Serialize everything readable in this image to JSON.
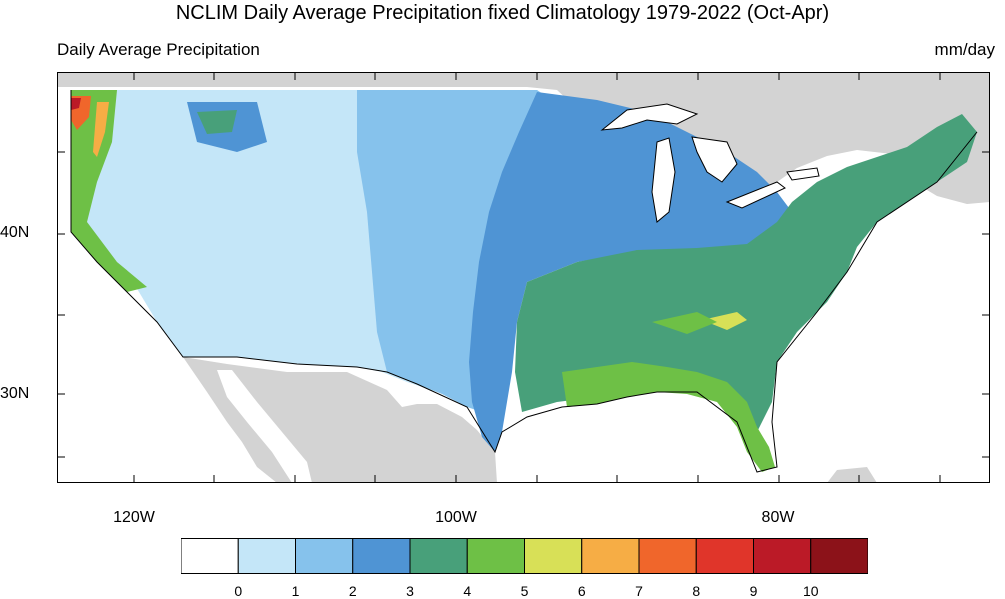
{
  "title": "NCLIM Daily Average Precipitation fixed Climatology 1979-2022 (Oct-Apr)",
  "subtitle_left": "Daily Average Precipitation",
  "subtitle_right": "mm/day",
  "lat_labels": [
    "40N",
    "30N"
  ],
  "lon_labels": [
    "120W",
    "100W",
    "80W"
  ],
  "colorbar": {
    "labels": [
      "0",
      "1",
      "2",
      "3",
      "4",
      "5",
      "6",
      "7",
      "8",
      "9",
      "10"
    ],
    "colors": [
      "#ffffff",
      "#c4e6f8",
      "#86c2ec",
      "#4f94d4",
      "#48a07a",
      "#6ec046",
      "#d8e057",
      "#f6ad45",
      "#f0662b",
      "#e0352a",
      "#bb1a27",
      "#8c1219"
    ]
  },
  "colors": {
    "land_outside": "#d3d3d3",
    "water": "#ffffff",
    "lakes": "#ffffff"
  }
}
